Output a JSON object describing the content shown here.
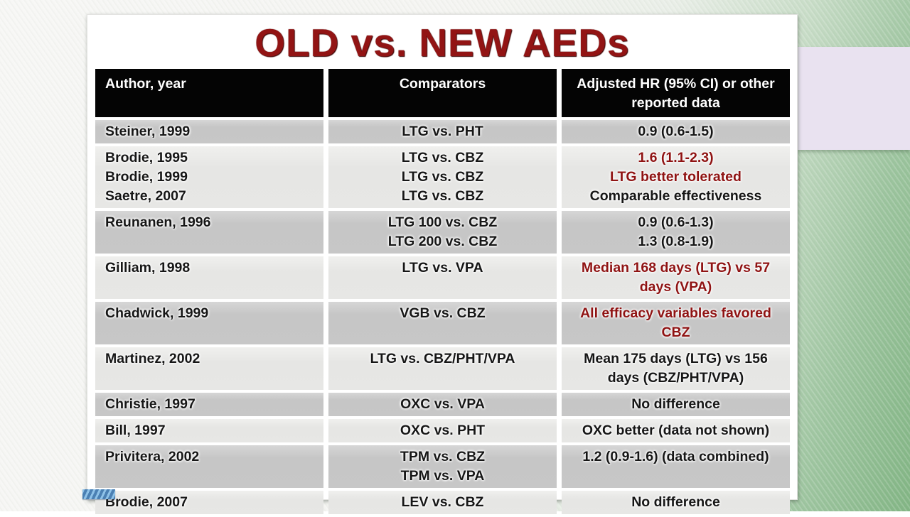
{
  "title": "OLD vs. NEW AEDs",
  "table": {
    "headers": [
      {
        "label": "Author, year"
      },
      {
        "label": "Comparators"
      },
      {
        "label": "Adjusted HR (95% CI) or other reported data"
      }
    ],
    "rows": [
      {
        "authors": [
          "Steiner, 1999"
        ],
        "comparators": [
          "LTG vs. PHT"
        ],
        "results": [
          {
            "text": "0.9 (0.6-1.5)",
            "red": false
          }
        ]
      },
      {
        "authors": [
          "Brodie, 1995",
          "Brodie, 1999",
          "Saetre, 2007"
        ],
        "comparators": [
          "LTG vs. CBZ",
          "LTG vs. CBZ",
          "LTG vs. CBZ"
        ],
        "results": [
          {
            "text": "1.6 (1.1-2.3)",
            "red": true
          },
          {
            "text": "LTG better tolerated",
            "red": true
          },
          {
            "text": "Comparable effectiveness",
            "red": false
          }
        ]
      },
      {
        "authors": [
          "Reunanen, 1996"
        ],
        "comparators": [
          "LTG 100 vs. CBZ",
          "LTG 200 vs. CBZ"
        ],
        "results": [
          {
            "text": "0.9 (0.6-1.3)",
            "red": false
          },
          {
            "text": "1.3 (0.8-1.9)",
            "red": false
          }
        ]
      },
      {
        "authors": [
          "Gilliam, 1998"
        ],
        "comparators": [
          "LTG vs. VPA"
        ],
        "results": [
          {
            "text": "Median 168 days (LTG) vs 57 days (VPA)",
            "red": true
          }
        ]
      },
      {
        "authors": [
          "Chadwick, 1999"
        ],
        "comparators": [
          "VGB vs. CBZ"
        ],
        "results": [
          {
            "text": "All efficacy variables favored CBZ",
            "red": true
          }
        ]
      },
      {
        "authors": [
          "Martinez, 2002"
        ],
        "comparators": [
          "LTG vs. CBZ/PHT/VPA"
        ],
        "results": [
          {
            "text": "Mean 175 days (LTG) vs 156 days (CBZ/PHT/VPA)",
            "red": false
          }
        ]
      },
      {
        "authors": [
          "Christie, 1997"
        ],
        "comparators": [
          "OXC vs. VPA"
        ],
        "results": [
          {
            "text": "No difference",
            "red": false
          }
        ]
      },
      {
        "authors": [
          "Bill, 1997"
        ],
        "comparators": [
          "OXC vs. PHT"
        ],
        "results": [
          {
            "text": "OXC better (data not shown)",
            "red": false
          }
        ]
      },
      {
        "authors": [
          "Privitera, 2002"
        ],
        "comparators": [
          "TPM vs. CBZ",
          "TPM vs. VPA"
        ],
        "results": [
          {
            "text": "1.2 (0.9-1.6) (data combined)",
            "red": false
          }
        ]
      },
      {
        "authors": [
          "Brodie, 2007"
        ],
        "comparators": [
          "LEV vs. CBZ"
        ],
        "results": [
          {
            "text": "No difference",
            "red": false
          }
        ]
      }
    ]
  },
  "colors": {
    "title_red": "#921414",
    "result_red": "#8f1313",
    "header_bg": "#040404",
    "row_dark": "#c9c9c9",
    "row_light": "#e8e8e6",
    "background_green": "#85b787",
    "lavender_panel": "#e9e2f0",
    "stripe_blue": "#4b80b3"
  }
}
